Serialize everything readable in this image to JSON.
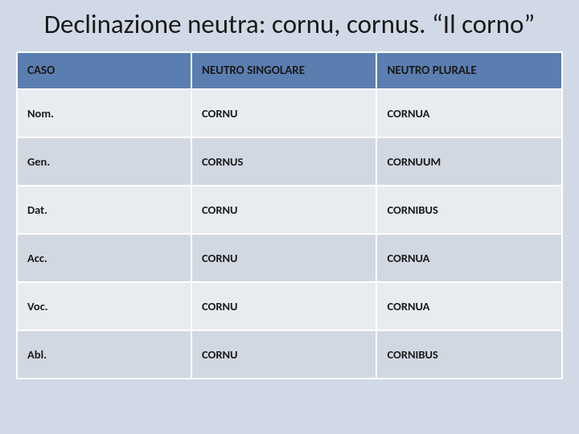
{
  "title": "Declinazione neutra: cornu, cornus. “Il corno”",
  "table": {
    "type": "table",
    "header_bg": "#5a7eb0",
    "row_odd_bg": "#e8ebf0",
    "row_even_bg": "#d2d8e2",
    "border_color": "#ffffff",
    "text_color": "#1a1a1a",
    "header_fontsize": 15,
    "cell_fontsize": 14.5,
    "font_weight": "bold",
    "column_widths": [
      "32%",
      "34%",
      "34%"
    ],
    "columns": [
      "CASO",
      "NEUTRO SINGOLARE",
      "NEUTRO PLURALE"
    ],
    "rows": [
      [
        "Nom.",
        "CORNU",
        "CORNUA"
      ],
      [
        "Gen.",
        "CORNUS",
        "CORNUUM"
      ],
      [
        "Dat.",
        "CORNU",
        "CORNIBUS"
      ],
      [
        "Acc.",
        "CORNU",
        "CORNUA"
      ],
      [
        "Voc.",
        "CORNU",
        "CORNUA"
      ],
      [
        "Abl.",
        "CORNU",
        "CORNIBUS"
      ]
    ]
  },
  "background_color": "#d1d9e6"
}
